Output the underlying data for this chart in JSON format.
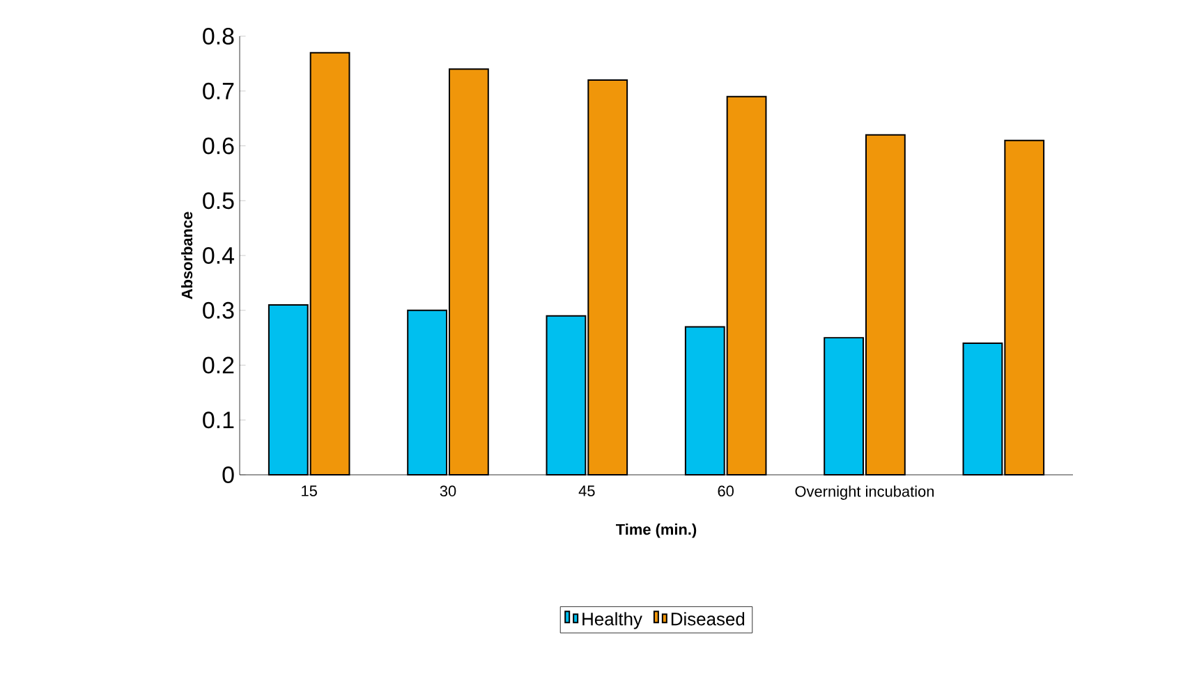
{
  "chart_data": {
    "type": "bar",
    "xlabel": "Time (min.)",
    "ylabel": "Absorbance",
    "categories": [
      "15",
      "30",
      "45",
      "60",
      "Overnight incubation",
      null
    ],
    "series": [
      {
        "name": "Healthy",
        "color": "#00bfef",
        "values": [
          0.31,
          0.3,
          0.29,
          0.27,
          0.25,
          0.24
        ]
      },
      {
        "name": "Diseased",
        "color": "#f0960a",
        "values": [
          0.77,
          0.74,
          0.72,
          0.69,
          0.62,
          0.61
        ]
      }
    ],
    "ylim": [
      0,
      0.8
    ],
    "yticks": [
      0,
      0.1,
      0.2,
      0.3,
      0.4,
      0.5,
      0.6,
      0.7,
      0.8
    ],
    "grid": false,
    "legend": "bottom"
  }
}
